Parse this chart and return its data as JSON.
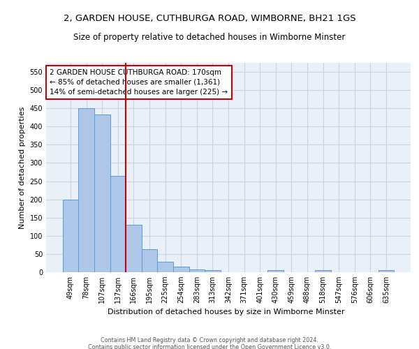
{
  "title": "2, GARDEN HOUSE, CUTHBURGA ROAD, WIMBORNE, BH21 1GS",
  "subtitle": "Size of property relative to detached houses in Wimborne Minster",
  "xlabel": "Distribution of detached houses by size in Wimborne Minster",
  "ylabel": "Number of detached properties",
  "footer_line1": "Contains HM Land Registry data © Crown copyright and database right 2024.",
  "footer_line2": "Contains public sector information licensed under the Open Government Licence v3.0.",
  "bar_labels": [
    "49sqm",
    "78sqm",
    "107sqm",
    "137sqm",
    "166sqm",
    "195sqm",
    "225sqm",
    "254sqm",
    "283sqm",
    "313sqm",
    "342sqm",
    "371sqm",
    "401sqm",
    "430sqm",
    "459sqm",
    "488sqm",
    "518sqm",
    "547sqm",
    "576sqm",
    "606sqm",
    "635sqm"
  ],
  "bar_values": [
    200,
    451,
    433,
    265,
    130,
    63,
    28,
    15,
    8,
    5,
    0,
    0,
    0,
    6,
    0,
    0,
    5,
    0,
    0,
    0,
    5
  ],
  "bar_color": "#aec6e8",
  "bar_edge_color": "#5b9bd5",
  "reference_line_index": 4,
  "reference_line_color": "#cc0000",
  "annotation_text": "2 GARDEN HOUSE CUTHBURGA ROAD: 170sqm\n← 85% of detached houses are smaller (1,361)\n14% of semi-detached houses are larger (225) →",
  "annotation_box_color": "#cc0000",
  "ylim": [
    0,
    575
  ],
  "yticks": [
    0,
    50,
    100,
    150,
    200,
    250,
    300,
    350,
    400,
    450,
    500,
    550
  ],
  "grid_color": "#c8d4e8",
  "background_color": "#eaf0f8",
  "title_fontsize": 9.5,
  "subtitle_fontsize": 8.5,
  "axis_label_fontsize": 8,
  "tick_fontsize": 7,
  "annotation_fontsize": 7.5,
  "footer_fontsize": 5.8
}
